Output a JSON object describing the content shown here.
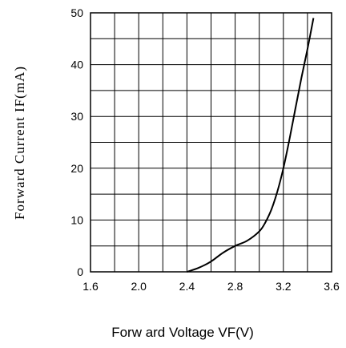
{
  "chart_data": {
    "type": "line",
    "xlabel": "Forw ard Voltage VF(V)",
    "ylabel": "Forward Current IF(mA)",
    "xlim": [
      1.6,
      3.6
    ],
    "ylim": [
      0,
      50
    ],
    "x_ticks": [
      "1.6",
      "2.0",
      "2.4",
      "2.8",
      "3.2",
      "3.6"
    ],
    "y_ticks": [
      "0",
      "10",
      "20",
      "30",
      "40",
      "50"
    ],
    "grid": true,
    "series": [
      {
        "x": [
          2.4,
          2.5,
          2.6,
          2.7,
          2.8,
          2.9,
          3.0,
          3.05,
          3.1,
          3.15,
          3.2,
          3.25,
          3.3,
          3.35,
          3.4,
          3.45
        ],
        "y": [
          0,
          0.8,
          2.0,
          3.7,
          5.0,
          6.0,
          7.8,
          9.5,
          12.0,
          15.5,
          20.0,
          25.5,
          31.5,
          37.5,
          43.0,
          49.0
        ]
      }
    ]
  }
}
